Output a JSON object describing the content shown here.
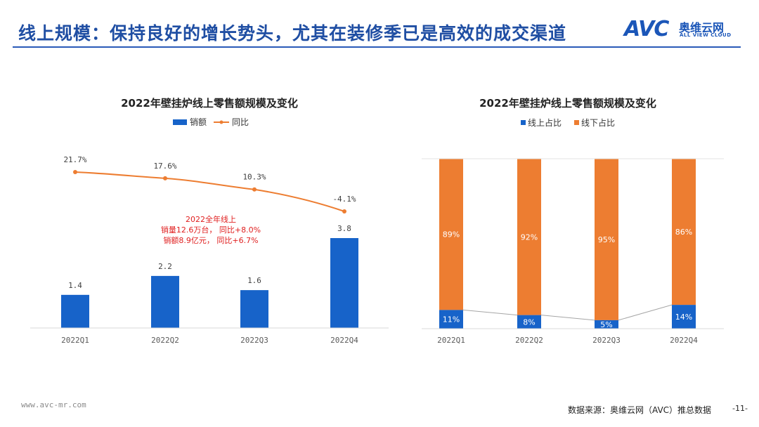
{
  "header": {
    "title": "线上规模：保持良好的增长势头，尤其在装修季已是高效的成交渠道",
    "logo_avc": "AVC",
    "logo_cn": "奥维云网",
    "logo_en": "ALL VIEW CLOUD"
  },
  "colors": {
    "blue": "#1763c9",
    "orange": "#ed7d31",
    "title_blue": "#1f4ea3",
    "red": "#e02020"
  },
  "chart_data": [
    {
      "type": "bar",
      "title": "2022年壁挂炉线上零售额规模及变化",
      "categories": [
        "2022Q1",
        "2022Q2",
        "2022Q3",
        "2022Q4"
      ],
      "series": [
        {
          "name": "销额",
          "type": "bar",
          "values": [
            1.4,
            2.2,
            1.6,
            3.8
          ],
          "labels": [
            "1.4",
            "2.2",
            "1.6",
            "3.8"
          ]
        },
        {
          "name": "同比",
          "type": "line",
          "values": [
            21.7,
            17.6,
            10.3,
            -4.1
          ],
          "labels": [
            "21.7%",
            "17.6%",
            "10.3%",
            "-4.1%"
          ]
        }
      ],
      "annotation": [
        "2022全年线上",
        "销量12.6万台， 同比+8.0%",
        "销额8.9亿元， 同比+6.7%"
      ],
      "legend_position": "top",
      "grid": false
    },
    {
      "type": "bar",
      "stacked": true,
      "title": "2022年壁挂炉线上零售额规模及变化",
      "categories": [
        "2022Q1",
        "2022Q2",
        "2022Q3",
        "2022Q4"
      ],
      "series": [
        {
          "name": "线上占比",
          "values": [
            11,
            8,
            5,
            14
          ],
          "labels": [
            "11%",
            "8%",
            "5%",
            "14%"
          ]
        },
        {
          "name": "线下占比",
          "values": [
            89,
            92,
            95,
            86
          ],
          "labels": [
            "89%",
            "92%",
            "95%",
            "86%"
          ]
        }
      ],
      "ylim": [
        0,
        100
      ],
      "legend_position": "top",
      "grid": false
    }
  ],
  "footer": {
    "url": "www.avc-mr.com",
    "source": "数据来源：奥维云网（AVC）推总数据",
    "page": "-11-"
  }
}
